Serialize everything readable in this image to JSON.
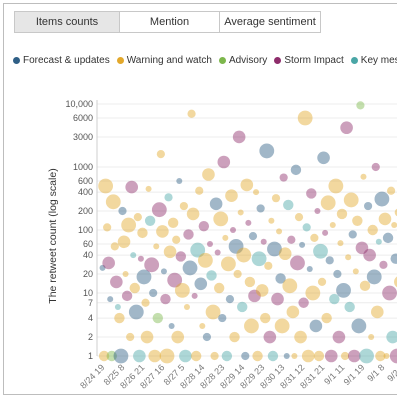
{
  "tabs": [
    {
      "label": "Items counts",
      "active": true
    },
    {
      "label": "Mention",
      "active": false
    },
    {
      "label": "Average sentiment",
      "active": false
    }
  ],
  "legend": [
    {
      "label": "Forecast & updates",
      "color": "#2f5f86"
    },
    {
      "label": "Warning and watch",
      "color": "#e3a82b"
    },
    {
      "label": "Advisory",
      "color": "#7db74c"
    },
    {
      "label": "Storm Impact",
      "color": "#8e2d6b"
    },
    {
      "label": "Key message and br",
      "color": "#4aa6a6"
    }
  ],
  "chart_data": {
    "type": "scatter",
    "ylabel": "The retweet count (log scale)",
    "yscale": "log",
    "ylim": [
      1,
      10000
    ],
    "yticks": [
      1,
      2,
      4,
      7,
      10,
      20,
      40,
      60,
      100,
      200,
      400,
      600,
      1000,
      3000,
      6000,
      10000
    ],
    "ytick_labels": [
      "1",
      "2",
      "4",
      "7",
      "10",
      "20",
      "40",
      "60",
      "100",
      "200",
      "400",
      "600",
      "1000",
      "3000",
      "6000",
      "10,000"
    ],
    "xtick_labels": [
      "8/24 19",
      "8/25 8",
      "8/26 21",
      "8/27 16",
      "8/27 5",
      "8/28 14",
      "8/28 23",
      "8/29 14",
      "8/29 23",
      "8/30 13",
      "8/31 12",
      "8/31 21",
      "9/1 11",
      "9/1 19",
      "9/1 8",
      "9/2 1"
    ],
    "series": [
      {
        "color": "#2f5f86"
      },
      {
        "color": "#e3a82b"
      },
      {
        "color": "#7db74c"
      },
      {
        "color": "#8e2d6b"
      },
      {
        "color": "#4aa6a6"
      }
    ],
    "points": [
      [
        0.5,
        25,
        0
      ],
      [
        1.0,
        1,
        1
      ],
      [
        1.5,
        500,
        1
      ],
      [
        2.0,
        110,
        1
      ],
      [
        2.5,
        30,
        3
      ],
      [
        3.0,
        8,
        0
      ],
      [
        3.5,
        1,
        2
      ],
      [
        4.0,
        280,
        1
      ],
      [
        4.5,
        55,
        1
      ],
      [
        5.0,
        15,
        3
      ],
      [
        5.5,
        6,
        4
      ],
      [
        6.0,
        4,
        1
      ],
      [
        6.5,
        1,
        0
      ],
      [
        7.0,
        200,
        0
      ],
      [
        7.5,
        65,
        1
      ],
      [
        8.0,
        20,
        1
      ],
      [
        8.5,
        9,
        3
      ],
      [
        9.0,
        120,
        1
      ],
      [
        9.5,
        2,
        1
      ],
      [
        10.0,
        480,
        3
      ],
      [
        10.5,
        40,
        4
      ],
      [
        11.0,
        12,
        1
      ],
      [
        11.5,
        5,
        0
      ],
      [
        12.0,
        160,
        1
      ],
      [
        12.5,
        1,
        4
      ],
      [
        13.0,
        35,
        3
      ],
      [
        13.5,
        90,
        1
      ],
      [
        14.0,
        18,
        0
      ],
      [
        14.5,
        7,
        1
      ],
      [
        15.0,
        2,
        1
      ],
      [
        15.5,
        450,
        1
      ],
      [
        16.0,
        140,
        4
      ],
      [
        16.5,
        28,
        3
      ],
      [
        17.0,
        10,
        0
      ],
      [
        17.5,
        1,
        1
      ],
      [
        18.0,
        55,
        1
      ],
      [
        18.5,
        4,
        2
      ],
      [
        19.0,
        210,
        3
      ],
      [
        19.5,
        1600,
        1
      ],
      [
        20.0,
        95,
        1
      ],
      [
        20.5,
        22,
        0
      ],
      [
        21.0,
        8,
        3
      ],
      [
        21.5,
        1,
        1
      ],
      [
        22.0,
        330,
        4
      ],
      [
        22.5,
        45,
        1
      ],
      [
        23.0,
        3,
        0
      ],
      [
        23.5,
        130,
        1
      ],
      [
        24.0,
        16,
        3
      ],
      [
        24.5,
        70,
        1
      ],
      [
        25.0,
        2,
        1
      ],
      [
        25.5,
        600,
        0
      ],
      [
        26.0,
        38,
        3
      ],
      [
        26.5,
        11,
        1
      ],
      [
        27.0,
        240,
        1
      ],
      [
        27.5,
        1,
        4
      ],
      [
        28.0,
        6,
        1
      ],
      [
        28.5,
        85,
        3
      ],
      [
        29.0,
        25,
        0
      ],
      [
        29.5,
        7000,
        1
      ],
      [
        30.0,
        180,
        1
      ],
      [
        30.5,
        9,
        3
      ],
      [
        31.0,
        1,
        1
      ],
      [
        31.5,
        48,
        4
      ],
      [
        32.0,
        420,
        1
      ],
      [
        32.5,
        14,
        0
      ],
      [
        33.0,
        3,
        1
      ],
      [
        33.5,
        115,
        3
      ],
      [
        34.0,
        33,
        1
      ],
      [
        34.5,
        2,
        0
      ],
      [
        35.0,
        760,
        1
      ],
      [
        35.5,
        60,
        3
      ],
      [
        36.0,
        19,
        4
      ],
      [
        36.5,
        5,
        1
      ],
      [
        37.0,
        1,
        1
      ],
      [
        37.5,
        260,
        0
      ],
      [
        38.0,
        44,
        3
      ],
      [
        38.5,
        12,
        1
      ],
      [
        39.0,
        150,
        1
      ],
      [
        39.5,
        4,
        0
      ],
      [
        40.0,
        1200,
        3
      ],
      [
        40.5,
        75,
        1
      ],
      [
        41.0,
        1,
        4
      ],
      [
        41.5,
        29,
        1
      ],
      [
        42.0,
        8,
        0
      ],
      [
        42.5,
        350,
        1
      ],
      [
        43.0,
        100,
        3
      ],
      [
        43.5,
        2,
        1
      ],
      [
        44.0,
        55,
        0
      ],
      [
        44.5,
        20,
        1
      ],
      [
        45.0,
        3000,
        3
      ],
      [
        45.5,
        190,
        1
      ],
      [
        46.0,
        6,
        4
      ],
      [
        46.5,
        40,
        1
      ],
      [
        47.0,
        1,
        0
      ],
      [
        47.5,
        520,
        1
      ],
      [
        48.0,
        130,
        3
      ],
      [
        48.5,
        15,
        1
      ],
      [
        49.0,
        3,
        1
      ],
      [
        49.5,
        80,
        0
      ],
      [
        50.0,
        9,
        3
      ],
      [
        50.5,
        400,
        1
      ],
      [
        51.0,
        1,
        1
      ],
      [
        51.5,
        35,
        4
      ],
      [
        52.0,
        220,
        0
      ],
      [
        52.5,
        11,
        1
      ],
      [
        53.0,
        65,
        3
      ],
      [
        53.5,
        4,
        1
      ],
      [
        54.0,
        1800,
        0
      ],
      [
        54.5,
        27,
        1
      ],
      [
        55.0,
        2,
        3
      ],
      [
        55.5,
        140,
        1
      ],
      [
        56.0,
        1,
        4
      ],
      [
        56.5,
        50,
        0
      ],
      [
        57.0,
        320,
        1
      ],
      [
        57.5,
        8,
        3
      ],
      [
        58.0,
        95,
        1
      ],
      [
        58.5,
        17,
        0
      ],
      [
        59.0,
        3,
        1
      ],
      [
        59.5,
        680,
        3
      ],
      [
        60.0,
        42,
        1
      ],
      [
        60.5,
        1,
        0
      ],
      [
        61.0,
        250,
        4
      ],
      [
        61.5,
        13,
        1
      ],
      [
        62.0,
        70,
        3
      ],
      [
        62.5,
        5,
        1
      ],
      [
        63.0,
        1,
        1
      ],
      [
        63.5,
        900,
        0
      ],
      [
        64.0,
        30,
        3
      ],
      [
        64.5,
        160,
        1
      ],
      [
        65.0,
        2,
        1
      ],
      [
        65.5,
        58,
        0
      ],
      [
        66.0,
        7,
        3
      ],
      [
        66.5,
        6000,
        1
      ],
      [
        67.0,
        110,
        4
      ],
      [
        67.5,
        1,
        1
      ],
      [
        68.0,
        24,
        0
      ],
      [
        68.5,
        380,
        3
      ],
      [
        69.0,
        10,
        1
      ],
      [
        69.5,
        75,
        1
      ],
      [
        70.0,
        3,
        0
      ],
      [
        70.5,
        200,
        3
      ],
      [
        71.0,
        1,
        1
      ],
      [
        71.5,
        46,
        4
      ],
      [
        72.0,
        15,
        1
      ],
      [
        72.5,
        1400,
        0
      ],
      [
        73.0,
        90,
        3
      ],
      [
        73.5,
        4,
        1
      ],
      [
        74.0,
        270,
        1
      ],
      [
        74.5,
        33,
        0
      ],
      [
        75.0,
        1,
        3
      ],
      [
        75.5,
        120,
        1
      ],
      [
        76.0,
        8,
        4
      ],
      [
        76.5,
        500,
        1
      ],
      [
        77.0,
        20,
        0
      ],
      [
        77.5,
        2,
        3
      ],
      [
        78.0,
        62,
        1
      ],
      [
        78.5,
        180,
        1
      ],
      [
        79.0,
        11,
        0
      ],
      [
        79.5,
        1,
        1
      ],
      [
        80.0,
        4200,
        3
      ],
      [
        80.5,
        37,
        1
      ],
      [
        81.0,
        6,
        4
      ],
      [
        81.5,
        300,
        1
      ],
      [
        82.0,
        85,
        0
      ],
      [
        82.5,
        1,
        3
      ],
      [
        83.0,
        22,
        1
      ],
      [
        83.5,
        140,
        1
      ],
      [
        84.0,
        3,
        0
      ],
      [
        84.5,
        9500,
        2
      ],
      [
        85.0,
        52,
        3
      ],
      [
        85.5,
        700,
        1
      ],
      [
        86.0,
        13,
        1
      ],
      [
        86.5,
        1,
        4
      ],
      [
        87.0,
        240,
        0
      ],
      [
        87.5,
        40,
        3
      ],
      [
        88.0,
        2,
        1
      ],
      [
        88.5,
        100,
        1
      ],
      [
        89.0,
        18,
        0
      ],
      [
        89.5,
        1000,
        3
      ],
      [
        90.0,
        5,
        1
      ],
      [
        90.5,
        65,
        4
      ],
      [
        91.0,
        1,
        1
      ],
      [
        91.5,
        310,
        0
      ],
      [
        92.0,
        28,
        3
      ],
      [
        92.5,
        150,
        1
      ],
      [
        93.0,
        1,
        1
      ],
      [
        93.5,
        75,
        0
      ],
      [
        94.0,
        10,
        3
      ],
      [
        94.5,
        420,
        1
      ],
      [
        95.0,
        2,
        4
      ],
      [
        95.5,
        120,
        1
      ],
      [
        96.0,
        35,
        0
      ],
      [
        96.5,
        1,
        3
      ],
      [
        97.0,
        190,
        1
      ],
      [
        97.5,
        15,
        1
      ],
      [
        98.0,
        55,
        0
      ],
      [
        98.5,
        4,
        3
      ],
      [
        99.0,
        1,
        1
      ]
    ]
  }
}
